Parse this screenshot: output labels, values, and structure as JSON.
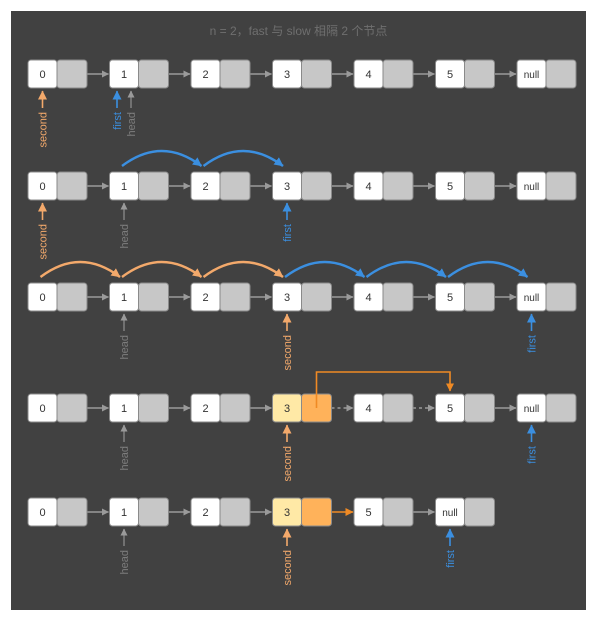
{
  "title": "n = 2，fast 与 slow 相隔 2 个节点",
  "colors": {
    "background": "#414141",
    "node_value": "#ffffff",
    "node_pointer": "#c7c7c7",
    "node_border": "#8a8a8a",
    "node_highlight_value": "#ffe9a6",
    "node_highlight_pointer": "#ffb25a",
    "link_arrow": "#9a9a9a",
    "second": "#f3a96b",
    "first": "#3b8fe0",
    "head": "#7d7d7d",
    "removal_arrow": "#f08a24"
  },
  "rows": [
    {
      "nodes": [
        "0",
        "1",
        "2",
        "3",
        "4",
        "5",
        "null"
      ],
      "highlight": [],
      "bypass": false,
      "pointers": [
        {
          "label": "second",
          "node": 0,
          "color": "second"
        },
        {
          "label": "first",
          "node": 1,
          "color": "first",
          "offset": -7
        },
        {
          "label": "head",
          "node": 1,
          "color": "head",
          "offset": 7
        }
      ],
      "moves": []
    },
    {
      "nodes": [
        "0",
        "1",
        "2",
        "3",
        "4",
        "5",
        "null"
      ],
      "highlight": [],
      "bypass": false,
      "pointers": [
        {
          "label": "second",
          "node": 0,
          "color": "second"
        },
        {
          "label": "head",
          "node": 1,
          "color": "head"
        },
        {
          "label": "first",
          "node": 3,
          "color": "first"
        }
      ],
      "moves": [
        {
          "from": 1,
          "to": 2,
          "color": "first"
        },
        {
          "from": 2,
          "to": 3,
          "color": "first"
        }
      ]
    },
    {
      "nodes": [
        "0",
        "1",
        "2",
        "3",
        "4",
        "5",
        "null"
      ],
      "highlight": [],
      "bypass": false,
      "pointers": [
        {
          "label": "head",
          "node": 1,
          "color": "head"
        },
        {
          "label": "second",
          "node": 3,
          "color": "second"
        },
        {
          "label": "first",
          "node": 6,
          "color": "first"
        }
      ],
      "moves": [
        {
          "from": 0,
          "to": 1,
          "color": "second"
        },
        {
          "from": 1,
          "to": 2,
          "color": "second"
        },
        {
          "from": 2,
          "to": 3,
          "color": "second"
        },
        {
          "from": 3,
          "to": 4,
          "color": "first"
        },
        {
          "from": 4,
          "to": 5,
          "color": "first"
        },
        {
          "from": 5,
          "to": 6,
          "color": "first"
        }
      ]
    },
    {
      "nodes": [
        "0",
        "1",
        "2",
        "3",
        "4",
        "5",
        "null"
      ],
      "highlight": [
        3
      ],
      "bypass": true,
      "pointers": [
        {
          "label": "head",
          "node": 1,
          "color": "head"
        },
        {
          "label": "second",
          "node": 3,
          "color": "second"
        },
        {
          "label": "first",
          "node": 6,
          "color": "first"
        }
      ],
      "moves": []
    },
    {
      "nodes": [
        "0",
        "1",
        "2",
        "3",
        "5",
        "null"
      ],
      "highlight": [
        3
      ],
      "bypass": false,
      "pointers": [
        {
          "label": "head",
          "node": 1,
          "color": "head"
        },
        {
          "label": "second",
          "node": 3,
          "color": "second"
        },
        {
          "label": "first",
          "node": 5,
          "color": "first"
        }
      ],
      "moves": []
    }
  ]
}
